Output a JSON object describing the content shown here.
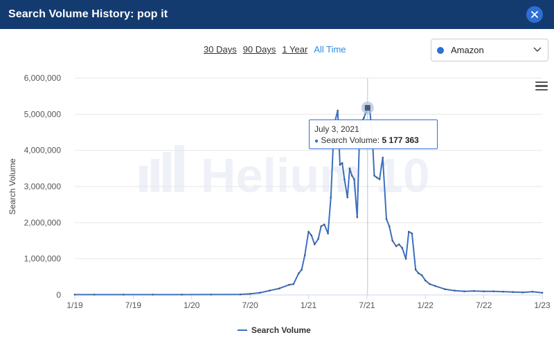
{
  "header": {
    "title": "Search Volume History: pop it",
    "close_icon": "close-icon"
  },
  "time_ranges": [
    {
      "label": "30 Days",
      "active": false
    },
    {
      "label": "90 Days",
      "active": false
    },
    {
      "label": "1 Year",
      "active": false
    },
    {
      "label": "All Time",
      "active": true
    }
  ],
  "marketplace": {
    "selected": "Amazon",
    "dot_color": "#2d6fd3"
  },
  "watermark": "Helium 10",
  "menu_icon": "hamburger-menu-icon",
  "tooltip": {
    "date": "July 3, 2021",
    "series_label": "Search Volume:",
    "value": "5 177 363"
  },
  "legend": {
    "label": "Search Volume"
  },
  "colors": {
    "header": "#143b70",
    "line": "#3a6fc2",
    "accent": "#2b8ae2"
  },
  "chart_data": {
    "type": "line",
    "title": "",
    "xlabel": "",
    "ylabel": "Search Volume",
    "ylim": [
      0,
      6000000
    ],
    "yticks": [
      0,
      1000000,
      2000000,
      3000000,
      4000000,
      5000000,
      6000000
    ],
    "ytick_labels": [
      "0",
      "1,000,000",
      "2,000,000",
      "3,000,000",
      "4,000,000",
      "5,000,000",
      "6,000,000"
    ],
    "xlim": [
      "2019-01",
      "2023-01"
    ],
    "xtick_labels": [
      "1/19",
      "7/19",
      "1/20",
      "7/20",
      "1/21",
      "7/21",
      "1/22",
      "7/22",
      "1/23"
    ],
    "grid": true,
    "legend_position": "bottom",
    "crosshair": "2021-07-03",
    "series": [
      {
        "name": "Search Volume",
        "x": [
          "2019-01",
          "2019-03",
          "2019-06",
          "2019-09",
          "2019-12",
          "2020-03",
          "2020-06",
          "2020-07",
          "2020-08",
          "2020-09",
          "2020-10",
          "2020-11",
          "2020-11-15",
          "2020-12",
          "2020-12-10",
          "2020-12-20",
          "2021-01",
          "2021-01-10",
          "2021-01-20",
          "2021-02",
          "2021-02-10",
          "2021-02-20",
          "2021-03",
          "2021-03-10",
          "2021-03-20",
          "2021-04",
          "2021-04-08",
          "2021-04-15",
          "2021-04-22",
          "2021-05",
          "2021-05-08",
          "2021-05-15",
          "2021-05-22",
          "2021-06",
          "2021-06-08",
          "2021-06-15",
          "2021-06-22",
          "2021-07-03",
          "2021-07-10",
          "2021-07-17",
          "2021-07-24",
          "2021-08",
          "2021-08-10",
          "2021-08-20",
          "2021-09",
          "2021-09-10",
          "2021-09-20",
          "2021-10",
          "2021-10-10",
          "2021-10-20",
          "2021-11",
          "2021-11-10",
          "2021-11-20",
          "2021-12",
          "2021-12-10",
          "2021-12-20",
          "2022-01",
          "2022-01-15",
          "2022-02",
          "2022-03",
          "2022-04",
          "2022-05",
          "2022-06",
          "2022-07",
          "2022-08",
          "2022-09",
          "2022-10",
          "2022-11",
          "2022-12",
          "2023-01"
        ],
        "values": [
          10000,
          10000,
          10000,
          10000,
          10000,
          12000,
          15000,
          30000,
          60000,
          120000,
          180000,
          280000,
          300000,
          600000,
          700000,
          1100000,
          1750000,
          1650000,
          1400000,
          1550000,
          1900000,
          1950000,
          1700000,
          2700000,
          4700000,
          5100000,
          3600000,
          3650000,
          3200000,
          2700000,
          3500000,
          3300000,
          3200000,
          2150000,
          4300000,
          4800000,
          4900000,
          5177363,
          5100000,
          4500000,
          3300000,
          3250000,
          3200000,
          3800000,
          2100000,
          1900000,
          1500000,
          1350000,
          1400000,
          1300000,
          1000000,
          1750000,
          1700000,
          700000,
          600000,
          550000,
          400000,
          300000,
          250000,
          160000,
          120000,
          100000,
          110000,
          100000,
          100000,
          90000,
          80000,
          70000,
          90000,
          60000
        ]
      }
    ]
  }
}
